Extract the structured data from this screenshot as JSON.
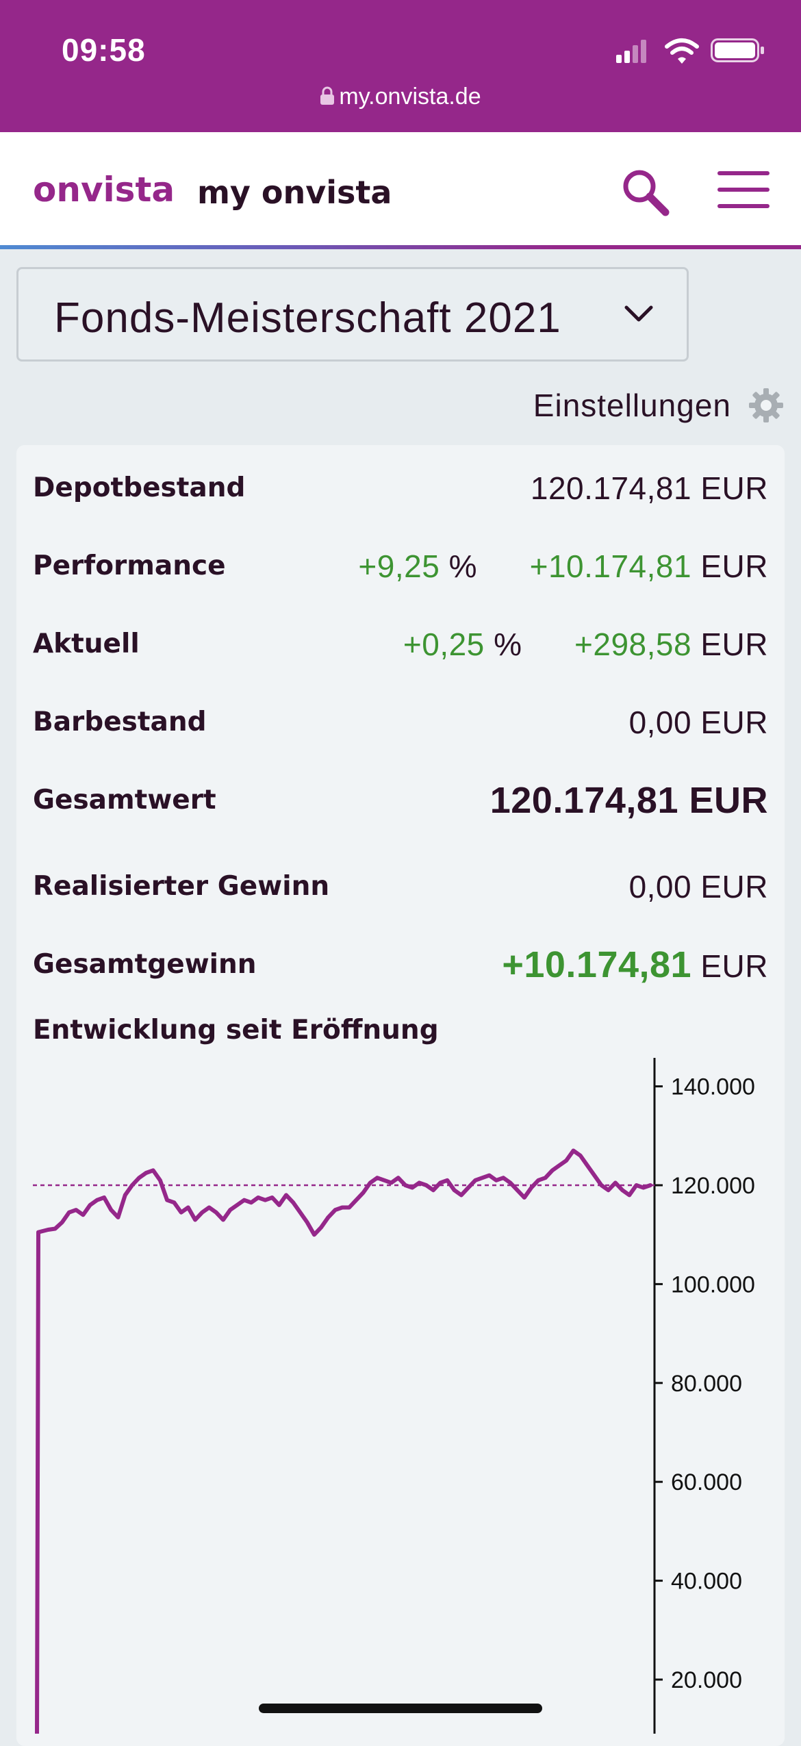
{
  "status_bar": {
    "time": "09:58",
    "url": "my.onvista.de",
    "background": "#95278a"
  },
  "header": {
    "brand": "onvista",
    "section": "my onvista",
    "icons": [
      "search-icon",
      "hamburger-menu-icon"
    ],
    "accent": "#95278a"
  },
  "portfolio_select": {
    "selected": "Fonds-Meisterschaft 2021"
  },
  "settings_label": "Einstellungen",
  "summary": {
    "depotbestand": {
      "label": "Depotbestand",
      "value": "120.174,81",
      "unit": "EUR"
    },
    "performance": {
      "label": "Performance",
      "percent": "+9,25",
      "percent_unit": "%",
      "value": "+10.174,81",
      "unit": "EUR"
    },
    "aktuell": {
      "label": "Aktuell",
      "percent": "+0,25",
      "percent_unit": "%",
      "value": "+298,58",
      "unit": "EUR"
    },
    "barbestand": {
      "label": "Barbestand",
      "value": "0,00",
      "unit": "EUR"
    },
    "gesamtwert": {
      "label": "Gesamtwert",
      "value": "120.174,81 EUR"
    },
    "realisierter_gewinn": {
      "label": "Realisierter Gewinn",
      "value": "0,00",
      "unit": "EUR"
    },
    "gesamtgewinn": {
      "label": "Gesamtgewinn",
      "value": "+10.174,81",
      "unit": "EUR"
    },
    "positive_color": "#3d9432"
  },
  "chart_title": "Entwicklung seit Eröffnung",
  "chart_data": {
    "type": "line",
    "title": "Entwicklung seit Eröffnung",
    "ylim": [
      0,
      145000
    ],
    "y_ticks": [
      20000,
      40000,
      60000,
      80000,
      100000,
      120000,
      140000
    ],
    "y_tick_labels": [
      "20.000",
      "40.000",
      "60.000",
      "80.000",
      "100.000",
      "120.000",
      "140.000"
    ],
    "reference_line": 120000,
    "line_color": "#95278a",
    "series": [
      {
        "values": [
          0,
          110500,
          111000,
          111200,
          112500,
          114500,
          115000,
          114000,
          116000,
          117000,
          117500,
          115000,
          113500,
          118000,
          120000,
          121500,
          122500,
          123000,
          121000,
          117000,
          116500,
          114500,
          115500,
          113000,
          114500,
          115500,
          114500,
          113000,
          115000,
          116000,
          117000,
          116500,
          117500,
          117000,
          117500,
          116000,
          118000,
          116500,
          114500,
          112500,
          110000,
          111500,
          113500,
          115000,
          115500,
          115500,
          117000,
          118500,
          120500,
          121500,
          121000,
          120500,
          121500,
          120000,
          119500,
          120500,
          120000,
          119000,
          120500,
          121000,
          119000,
          118000,
          119500,
          121000,
          121500,
          122000,
          121000,
          121500,
          120500,
          119000,
          117500,
          119500,
          121000,
          121500,
          123000,
          124000,
          125000,
          127000,
          126000,
          124000,
          122000,
          120000,
          119000,
          120500,
          119000,
          118000,
          120000,
          119500,
          120000
        ]
      }
    ]
  }
}
